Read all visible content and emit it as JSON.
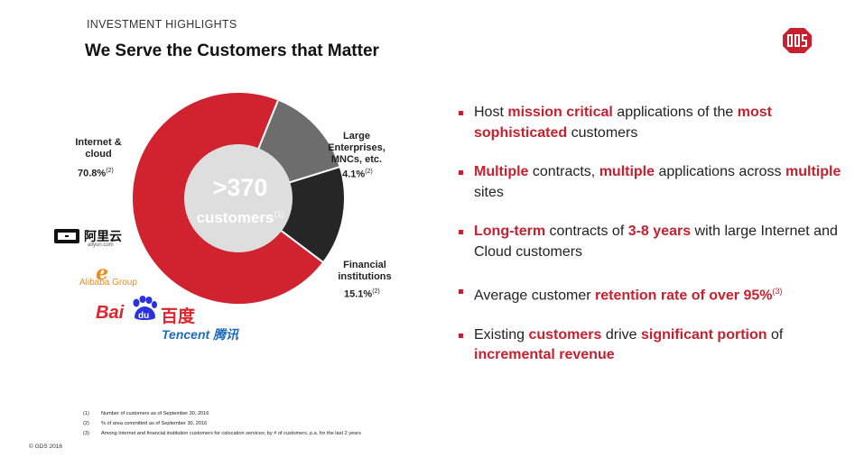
{
  "header": {
    "kicker": "INVESTMENT HIGHLIGHTS",
    "title": "We Serve the Customers that Matter"
  },
  "colors": {
    "accent": "#c8202f",
    "internet_segment": "#d0222f",
    "enterprise_segment": "#6d6d6d",
    "financial_segment": "#262626",
    "center_circle": "#dedede"
  },
  "chart_data": {
    "type": "pie",
    "variant": "donut",
    "center_value": ">370",
    "center_label": "customers",
    "center_footnote": "(1)",
    "slices": [
      {
        "name": "Internet & cloud",
        "value": 70.8,
        "label": "70.8%",
        "footnote": "(2)"
      },
      {
        "name": "Large Enterprises, MNCs, etc.",
        "value": 14.1,
        "label": "14.1%",
        "footnote": "(2)"
      },
      {
        "name": "Financial institutions",
        "value": 15.1,
        "label": "15.1%",
        "footnote": "(2)"
      }
    ]
  },
  "segments": {
    "internet": {
      "line1": "Internet &",
      "line2": "cloud",
      "pct": "70.8%",
      "fn": "(2)"
    },
    "enterprise": {
      "line1": "Large",
      "line2": "Enterprises,",
      "line3": "MNCs, etc.",
      "pct": "14.1%",
      "fn": "(2)"
    },
    "financial": {
      "line1": "Financial",
      "line2": "institutions",
      "pct": "15.1%",
      "fn": "(2)"
    }
  },
  "center": {
    "value": ">370",
    "label": "customers",
    "fn": "(1)"
  },
  "customer_logos": {
    "aliyun_cn": "阿里云",
    "aliyun_en": "aliyun.com",
    "alibaba": "Alibaba Group",
    "baidu_en": "Bai",
    "baidu_du": "du",
    "baidu_cn": "百度",
    "tencent": "Tencent 腾讯"
  },
  "bullets": [
    {
      "s1": "Host ",
      "s2": "mission critical",
      "s3": " applications of the ",
      "s4": "most sophisticated",
      "s5": " customers"
    },
    {
      "s1": "Multiple",
      "s2": " contracts, ",
      "s3": "multiple",
      "s4": " applications across ",
      "s5": "multiple",
      "s6": " sites"
    },
    {
      "s1": "Long-term",
      "s2": " contracts of ",
      "s3": "3-8 years",
      "s4": " with large Internet and Cloud customers"
    },
    {
      "s1": "Average customer ",
      "s2": "retention rate of over 95%",
      "s3": "(3)"
    },
    {
      "s1": "Existing ",
      "s2": "customers",
      "s3": " drive ",
      "s4": "significant portion",
      "s5": " of ",
      "s6": "incremental revenue"
    }
  ],
  "footnotes": [
    {
      "num": "(1)",
      "text": "Number of customers as of September 30, 2016"
    },
    {
      "num": "(2)",
      "text": "% of area committed as of September 30, 2016"
    },
    {
      "num": "(3)",
      "text": "Among Internet and financial institution customers for colocation services; by # of customers, p.a. for the last 2 years"
    }
  ],
  "copyright": "© GDS 2016",
  "brand_logo": "gds-logo-icon"
}
